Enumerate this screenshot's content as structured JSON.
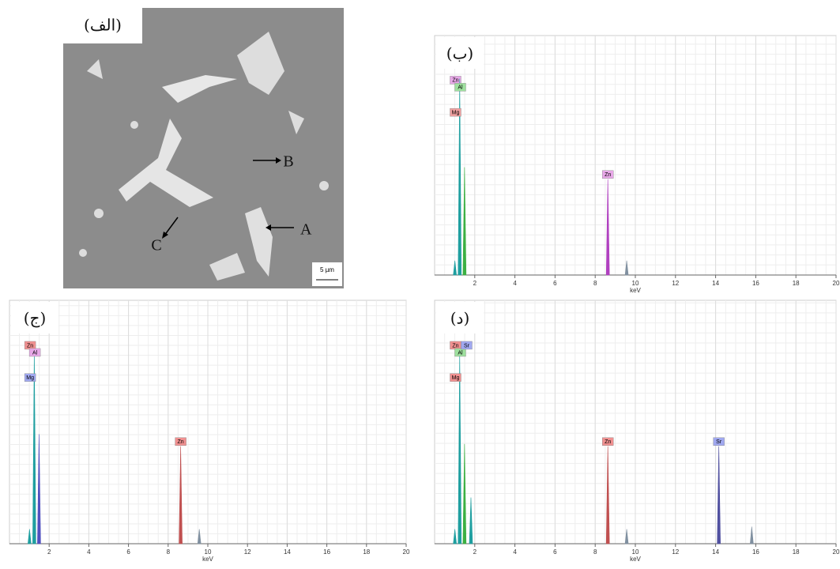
{
  "image_panel": {
    "label": "(الف)",
    "markers": [
      "A",
      "B",
      "C"
    ],
    "scale": "5 µm"
  },
  "chart_data": [
    {
      "type": "spectrum",
      "label": "(ب)",
      "xlabel": "keV",
      "xlim": [
        0,
        20
      ],
      "xticks": [
        2,
        4,
        6,
        8,
        10,
        12,
        14,
        16,
        18,
        20
      ],
      "ylim": [
        0,
        100
      ],
      "grid": true,
      "x": [
        1.01,
        1.25,
        1.49,
        8.63,
        9.57
      ],
      "values": [
        6,
        82,
        45,
        40,
        6
      ],
      "colors": [
        "#1f9fa0",
        "#1f9fa0",
        "#3cb043",
        "#b040c0",
        "#8090a0"
      ],
      "labels": [
        "Zn",
        "Mg",
        "Al",
        "Zn",
        null
      ],
      "label_colors": [
        "#e8a8e8",
        "#f0a0a0",
        "#9ee09e",
        "#e8a8e8",
        null
      ]
    },
    {
      "type": "spectrum",
      "label": "(ج)",
      "xlabel": "keV",
      "xlim": [
        0,
        20
      ],
      "xticks": [
        2,
        4,
        6,
        8,
        10,
        12,
        14,
        16,
        18,
        20
      ],
      "ylim": [
        0,
        100
      ],
      "grid": true,
      "x": [
        1.01,
        1.25,
        1.49,
        8.63,
        9.57
      ],
      "values": [
        6,
        80,
        45,
        40,
        6
      ],
      "colors": [
        "#1f9fa0",
        "#1f9fa0",
        "#5050c0",
        "#c05050",
        "#8090a0"
      ],
      "labels": [
        "Zn",
        "Mg",
        "Al",
        "Zn",
        null
      ],
      "label_colors": [
        "#f09090",
        "#a0a8f0",
        "#e8a8e8",
        "#f09090",
        null
      ]
    },
    {
      "type": "spectrum",
      "label": "(د)",
      "xlabel": "keV",
      "xlim": [
        0,
        20
      ],
      "xticks": [
        2,
        4,
        6,
        8,
        10,
        12,
        14,
        16,
        18,
        20
      ],
      "ylim": [
        0,
        100
      ],
      "grid": true,
      "x": [
        1.01,
        1.25,
        1.49,
        1.81,
        8.63,
        9.57,
        14.16,
        15.8
      ],
      "values": [
        6,
        79,
        41,
        19,
        40,
        6,
        40,
        7
      ],
      "colors": [
        "#1f9fa0",
        "#1f9fa0",
        "#3cb043",
        "#1f9fa0",
        "#c05050",
        "#8090a0",
        "#5050a0",
        "#8090a0"
      ],
      "labels": [
        "Zn",
        "Mg",
        "Al",
        "Sr",
        "Zn",
        null,
        "Sr",
        null
      ],
      "label_colors": [
        "#f09090",
        "#f09090",
        "#9ee09e",
        "#a0a8f0",
        "#f09090",
        null,
        "#a0a8f0",
        null
      ]
    }
  ]
}
